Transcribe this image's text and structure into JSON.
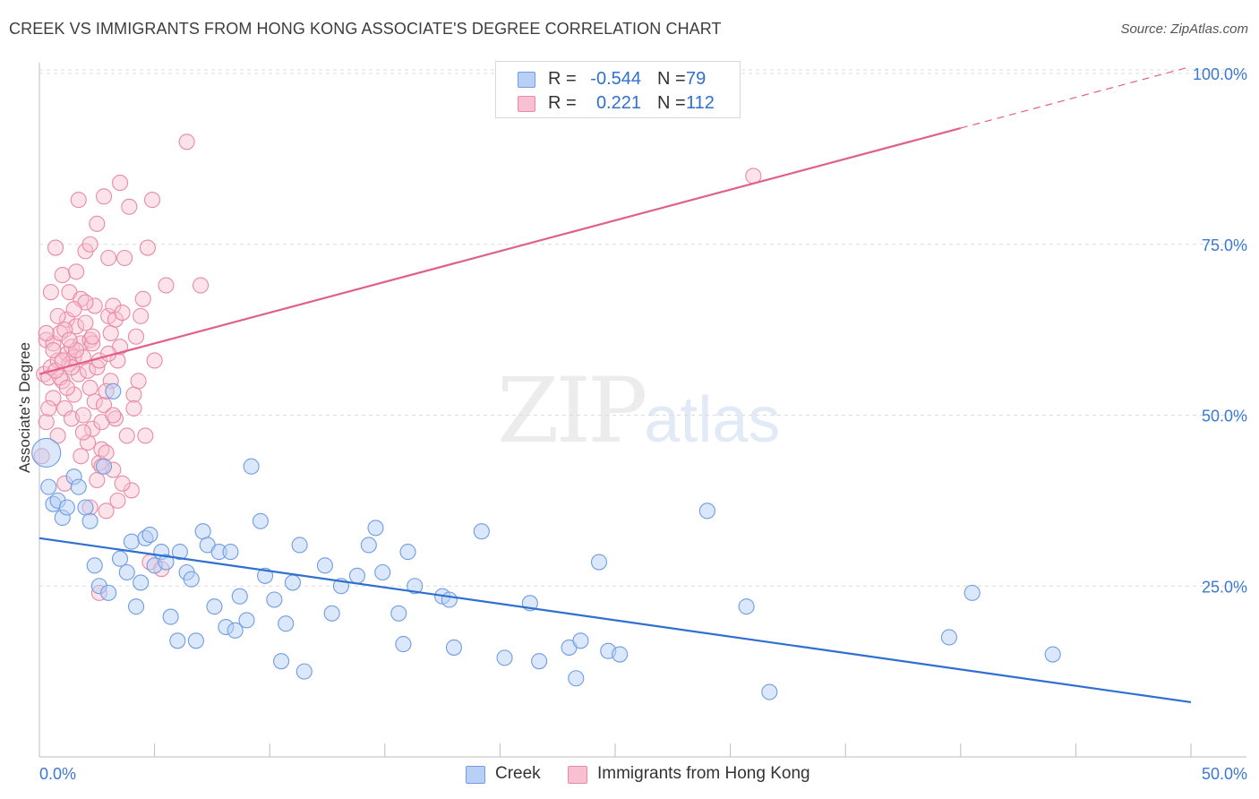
{
  "header": {
    "title": "CREEK VS IMMIGRANTS FROM HONG KONG ASSOCIATE'S DEGREE CORRELATION CHART",
    "source": "Source: ZipAtlas.com"
  },
  "watermark": {
    "zip": "ZIP",
    "atlas": "atlas"
  },
  "legend_top": {
    "rows": [
      {
        "r_label": "R =",
        "r_value": "-0.544",
        "n_label": "N =",
        "n_value": "79"
      },
      {
        "r_label": "R =",
        "r_value": "0.221",
        "n_label": "N =",
        "n_value": "112"
      }
    ]
  },
  "legend_bottom": {
    "items": [
      "Creek",
      "Immigrants from Hong Kong"
    ]
  },
  "colors": {
    "blue": "#2f6fd0",
    "blue_fill": "#b8d0f5",
    "pink": "#e0608a",
    "pink_fill": "#f8c0d0",
    "grid": "#dcdcdc",
    "axis_text_blue": "#3a78d4"
  },
  "chart_data": {
    "type": "scatter",
    "title": "CREEK VS IMMIGRANTS FROM HONG KONG ASSOCIATE'S DEGREE CORRELATION CHART",
    "xlabel": "",
    "ylabel": "Associate's Degree",
    "xlim": [
      0,
      50
    ],
    "ylim": [
      0,
      102
    ],
    "x_tick_labels": [
      "0.0%",
      "50.0%"
    ],
    "y_tick_labels": [
      "25.0%",
      "50.0%",
      "75.0%",
      "100.0%"
    ],
    "y_ticks": [
      25,
      50,
      75,
      100
    ],
    "grid": true,
    "legend_position": "top-center",
    "series": [
      {
        "name": "Creek",
        "trend": {
          "x": [
            0,
            50
          ],
          "y": [
            32.0,
            8.0
          ]
        },
        "points": [
          [
            0.3,
            44.5
          ],
          [
            0.4,
            39.5
          ],
          [
            0.6,
            37
          ],
          [
            0.8,
            37.5
          ],
          [
            1.0,
            35
          ],
          [
            1.2,
            36.5
          ],
          [
            1.5,
            41
          ],
          [
            1.7,
            39.5
          ],
          [
            2.0,
            36.5
          ],
          [
            2.2,
            34.5
          ],
          [
            2.4,
            28
          ],
          [
            2.6,
            25
          ],
          [
            2.8,
            42.5
          ],
          [
            3.0,
            24
          ],
          [
            3.2,
            53.5
          ],
          [
            3.5,
            29
          ],
          [
            3.8,
            27
          ],
          [
            4.0,
            31.5
          ],
          [
            4.2,
            22
          ],
          [
            4.4,
            25.5
          ],
          [
            4.6,
            32
          ],
          [
            4.8,
            32.5
          ],
          [
            5.0,
            28
          ],
          [
            5.3,
            30
          ],
          [
            5.5,
            28.5
          ],
          [
            5.7,
            20.5
          ],
          [
            6.0,
            17
          ],
          [
            6.1,
            30
          ],
          [
            6.4,
            27
          ],
          [
            6.6,
            26
          ],
          [
            6.8,
            17
          ],
          [
            7.1,
            33
          ],
          [
            7.3,
            31
          ],
          [
            7.6,
            22
          ],
          [
            7.8,
            30
          ],
          [
            8.1,
            19
          ],
          [
            8.3,
            30
          ],
          [
            8.5,
            18.5
          ],
          [
            8.7,
            23.5
          ],
          [
            9.0,
            20
          ],
          [
            9.2,
            42.5
          ],
          [
            9.6,
            34.5
          ],
          [
            9.8,
            26.5
          ],
          [
            10.2,
            23
          ],
          [
            10.5,
            14
          ],
          [
            10.7,
            19.5
          ],
          [
            11.0,
            25.5
          ],
          [
            11.3,
            31
          ],
          [
            11.5,
            12.5
          ],
          [
            12.4,
            28
          ],
          [
            12.7,
            21
          ],
          [
            13.1,
            25
          ],
          [
            13.8,
            26.5
          ],
          [
            14.3,
            31
          ],
          [
            14.6,
            33.5
          ],
          [
            14.9,
            27
          ],
          [
            15.6,
            21
          ],
          [
            15.8,
            16.5
          ],
          [
            16.0,
            30
          ],
          [
            16.3,
            25
          ],
          [
            17.5,
            23.5
          ],
          [
            17.8,
            23
          ],
          [
            18.0,
            16
          ],
          [
            19.2,
            33
          ],
          [
            20.2,
            14.5
          ],
          [
            21.3,
            22.5
          ],
          [
            21.7,
            14
          ],
          [
            23.0,
            16
          ],
          [
            23.3,
            11.5
          ],
          [
            23.5,
            17
          ],
          [
            24.3,
            28.5
          ],
          [
            24.7,
            15.5
          ],
          [
            25.2,
            15
          ],
          [
            29.0,
            36
          ],
          [
            30.7,
            22
          ],
          [
            31.7,
            9.5
          ],
          [
            39.5,
            17.5
          ],
          [
            40.5,
            24
          ],
          [
            44.0,
            15
          ]
        ]
      },
      {
        "name": "Immigrants from Hong Kong",
        "trend": {
          "x": [
            0,
            40
          ],
          "y": [
            56.0,
            92.0
          ]
        },
        "trend_dashed": {
          "x": [
            40,
            50
          ],
          "y": [
            92.0,
            101.0
          ]
        },
        "points": [
          [
            0.1,
            44
          ],
          [
            0.2,
            56
          ],
          [
            0.3,
            49
          ],
          [
            0.3,
            61
          ],
          [
            0.4,
            55.5
          ],
          [
            0.5,
            57
          ],
          [
            0.5,
            68
          ],
          [
            0.6,
            60.5
          ],
          [
            0.6,
            52.5
          ],
          [
            0.7,
            74.5
          ],
          [
            0.8,
            58
          ],
          [
            0.8,
            47
          ],
          [
            0.9,
            62
          ],
          [
            1.0,
            55
          ],
          [
            1.0,
            70.5
          ],
          [
            1.1,
            40
          ],
          [
            1.1,
            51
          ],
          [
            1.2,
            59
          ],
          [
            1.2,
            64
          ],
          [
            1.3,
            57.5
          ],
          [
            1.3,
            68
          ],
          [
            1.4,
            60
          ],
          [
            1.4,
            49.5
          ],
          [
            1.5,
            58.5
          ],
          [
            1.5,
            53
          ],
          [
            1.6,
            63
          ],
          [
            1.6,
            71
          ],
          [
            1.7,
            56
          ],
          [
            1.7,
            81.5
          ],
          [
            1.8,
            60.5
          ],
          [
            1.8,
            67
          ],
          [
            1.9,
            58.5
          ],
          [
            1.9,
            50
          ],
          [
            2.0,
            63.5
          ],
          [
            2.0,
            74
          ],
          [
            2.1,
            46
          ],
          [
            2.1,
            56.5
          ],
          [
            2.2,
            61
          ],
          [
            2.2,
            54
          ],
          [
            2.2,
            75
          ],
          [
            2.3,
            48
          ],
          [
            2.3,
            60.5
          ],
          [
            2.4,
            52
          ],
          [
            2.4,
            66
          ],
          [
            2.5,
            57
          ],
          [
            2.5,
            78
          ],
          [
            2.6,
            43
          ],
          [
            2.6,
            58
          ],
          [
            2.7,
            49
          ],
          [
            2.7,
            45
          ],
          [
            2.8,
            51.5
          ],
          [
            2.8,
            82
          ],
          [
            2.9,
            44.5
          ],
          [
            2.9,
            36
          ],
          [
            3.0,
            64.5
          ],
          [
            3.0,
            73
          ],
          [
            3.1,
            62
          ],
          [
            3.1,
            55
          ],
          [
            3.2,
            42
          ],
          [
            3.2,
            66
          ],
          [
            3.3,
            64
          ],
          [
            3.3,
            49.5
          ],
          [
            3.4,
            37.5
          ],
          [
            3.4,
            58
          ],
          [
            3.5,
            60
          ],
          [
            3.5,
            84
          ],
          [
            3.6,
            65
          ],
          [
            3.7,
            73
          ],
          [
            3.8,
            47
          ],
          [
            3.9,
            80.5
          ],
          [
            4.0,
            39
          ],
          [
            4.1,
            53
          ],
          [
            4.1,
            51
          ],
          [
            4.2,
            61.5
          ],
          [
            4.3,
            55
          ],
          [
            4.4,
            64.5
          ],
          [
            4.5,
            67
          ],
          [
            4.6,
            47
          ],
          [
            4.7,
            74.5
          ],
          [
            4.8,
            28.5
          ],
          [
            4.9,
            81.5
          ],
          [
            5.0,
            58
          ],
          [
            5.3,
            27.5
          ],
          [
            5.5,
            69
          ],
          [
            6.4,
            90
          ],
          [
            7.0,
            69
          ],
          [
            2.2,
            36.5
          ],
          [
            1.4,
            57
          ],
          [
            0.9,
            55.5
          ],
          [
            1.6,
            59.5
          ],
          [
            2.0,
            66.5
          ],
          [
            2.3,
            61.5
          ],
          [
            1.2,
            54
          ],
          [
            0.7,
            56.5
          ],
          [
            1.9,
            47.5
          ],
          [
            2.7,
            42.5
          ],
          [
            3.2,
            50
          ],
          [
            3.6,
            40
          ],
          [
            1.1,
            62.5
          ],
          [
            1.5,
            65.5
          ],
          [
            0.4,
            51
          ],
          [
            0.6,
            59.5
          ],
          [
            2.5,
            40.5
          ],
          [
            3.0,
            59
          ],
          [
            1.8,
            44
          ],
          [
            2.9,
            53.5
          ],
          [
            0.3,
            62
          ],
          [
            0.8,
            64.5
          ],
          [
            1.3,
            61
          ],
          [
            2.6,
            24
          ],
          [
            31.0,
            85
          ],
          [
            1.0,
            58
          ]
        ]
      }
    ]
  }
}
